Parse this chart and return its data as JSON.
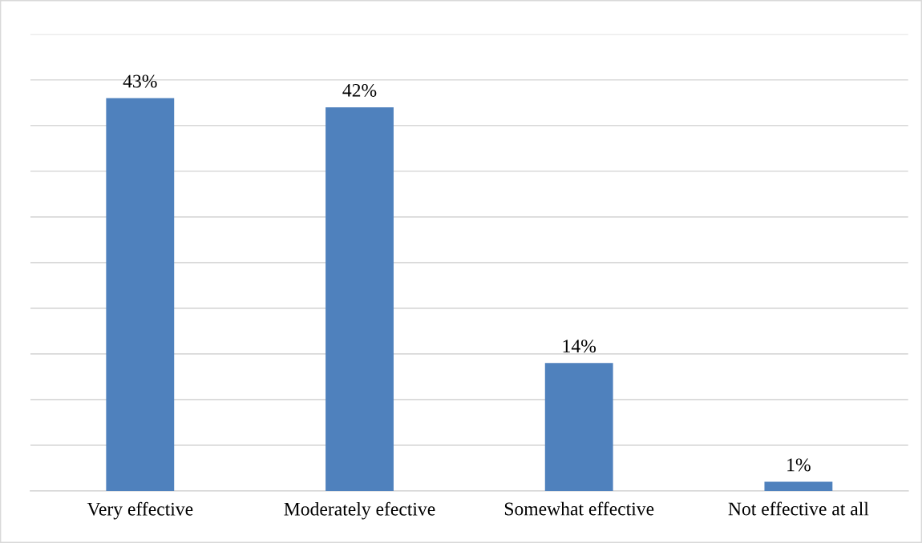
{
  "chart_data": {
    "type": "bar",
    "categories": [
      "Very effective",
      "Moderately efective",
      "Somewhat effective",
      "Not effective at all"
    ],
    "values": [
      43,
      42,
      14,
      1
    ],
    "value_labels": [
      "43%",
      "42%",
      "14%",
      "1%"
    ],
    "color": "#4f81bd",
    "ylim": [
      0,
      50
    ],
    "yticks": [
      {
        "value": 0,
        "label": null
      },
      {
        "value": 5,
        "label": null
      },
      {
        "value": 10,
        "label": null
      },
      {
        "value": 15,
        "label": null
      },
      {
        "value": 20,
        "label": null
      },
      {
        "value": 25,
        "label": null
      },
      {
        "value": 30,
        "label": null
      },
      {
        "value": 35,
        "label": null
      },
      {
        "value": 40,
        "label": null
      },
      {
        "value": 45,
        "label": null
      },
      {
        "value": 50,
        "label": null
      }
    ],
    "tick_labels": "x",
    "grid": "y",
    "legend": false
  }
}
